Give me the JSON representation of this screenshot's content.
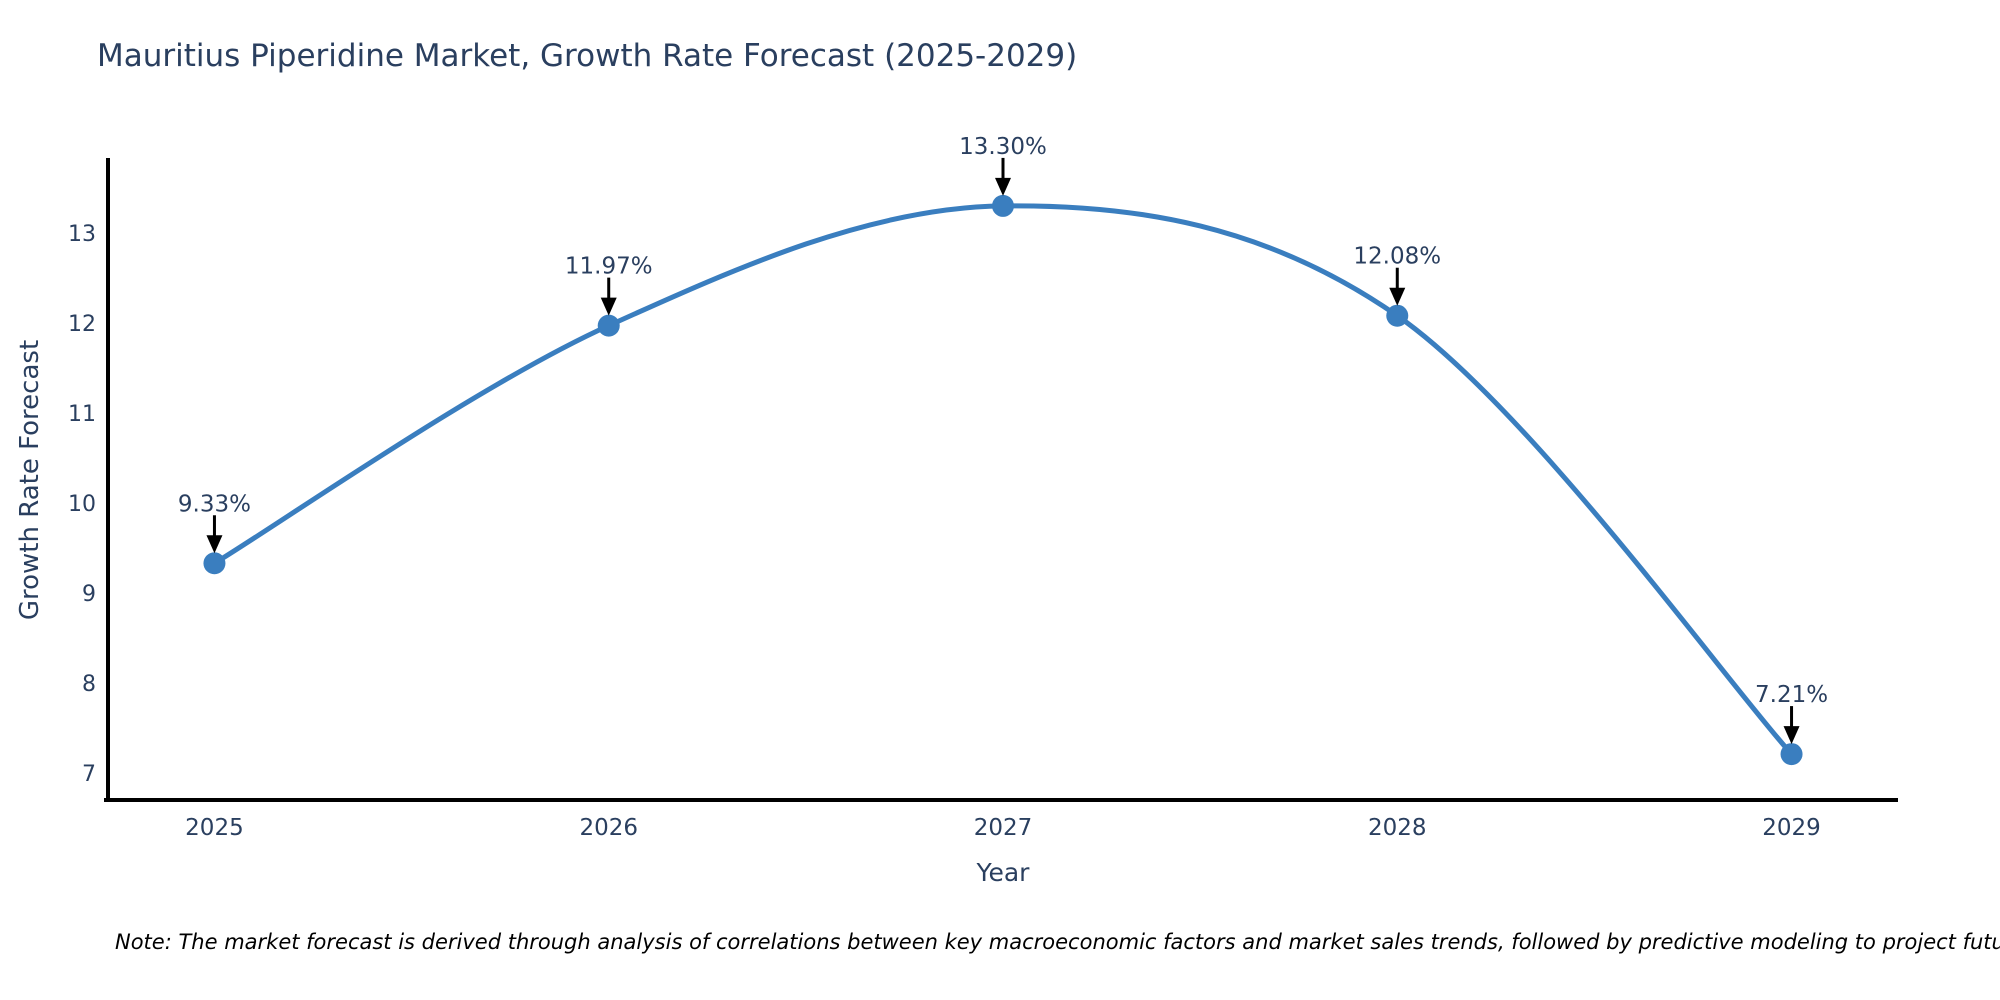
{
  "title": "Mauritius Piperidine Market, Growth Rate Forecast (2025-2029)",
  "note": "Note: The market forecast is derived through analysis of correlations between key macroeconomic factors and market sales trends, followed by predictive modeling to project future sales",
  "chart_data": {
    "type": "line",
    "title": "Mauritius Piperidine Market, Growth Rate Forecast (2025-2029)",
    "xlabel": "Year",
    "ylabel": "Growth Rate Forecast",
    "categories": [
      2025,
      2026,
      2027,
      2028,
      2029
    ],
    "series": [
      {
        "name": "Growth Rate Forecast",
        "values": [
          9.33,
          11.97,
          13.3,
          12.08,
          7.21
        ]
      }
    ],
    "point_labels": [
      "9.33%",
      "11.97%",
      "13.30%",
      "12.08%",
      "7.21%"
    ],
    "xticks": [
      "2025",
      "2026",
      "2027",
      "2028",
      "2029"
    ],
    "yticks": [
      7,
      8,
      9,
      10,
      11,
      12,
      13
    ],
    "xlim": [
      2024.73,
      2029.27
    ],
    "ylim": [
      6.7,
      13.81
    ],
    "grid": false,
    "legend": false,
    "line_shape": "spline",
    "colors": {
      "line": "#3a7ebf",
      "marker": "#3a7ebf",
      "axis": "#000000",
      "arrow": "#000000",
      "text": "#2a3f5f",
      "note_text": "#000000"
    }
  }
}
